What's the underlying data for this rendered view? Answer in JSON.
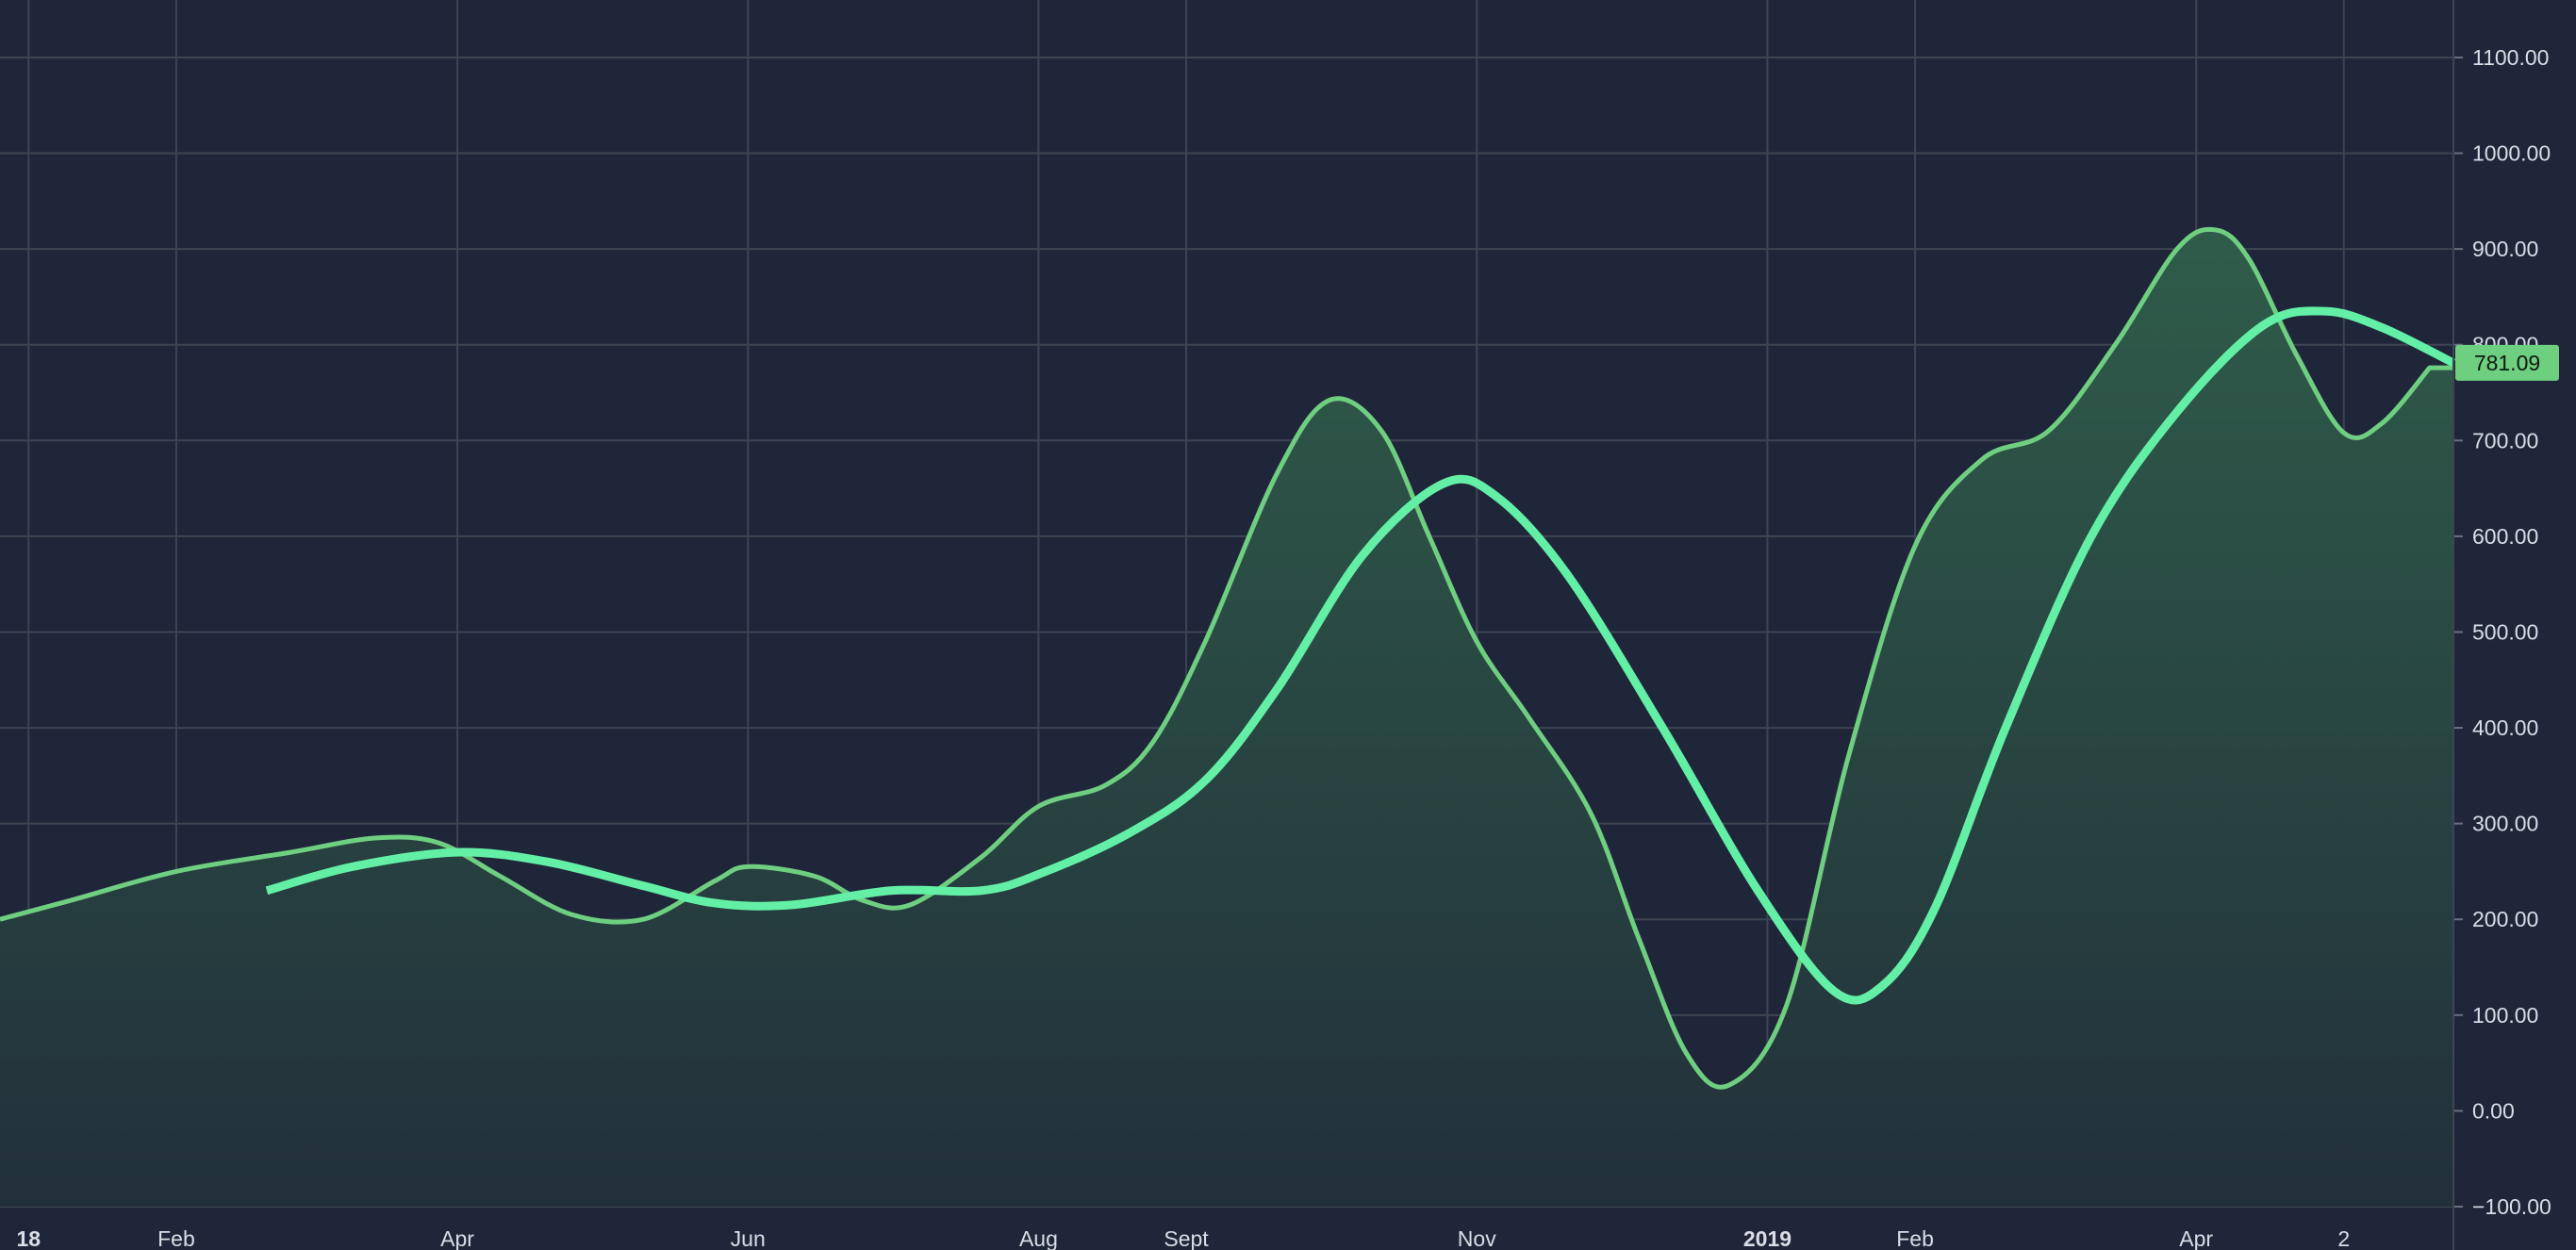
{
  "chart_data": {
    "type": "area",
    "ylim": [
      -100,
      1160
    ],
    "grid": true,
    "y_ticks": [
      "1100.00",
      "1000.00",
      "900.00",
      "800.00",
      "700.00",
      "600.00",
      "500.00",
      "400.00",
      "300.00",
      "200.00",
      "100.00",
      "0.00",
      "−100.00"
    ],
    "y_tick_values": [
      1100,
      1000,
      900,
      800,
      700,
      600,
      500,
      400,
      300,
      200,
      100,
      0,
      -100
    ],
    "x_range": [
      "2017-12-26",
      "2019-05-25"
    ],
    "x_ticks": [
      {
        "label": "18",
        "date": "2018-01-01",
        "bold": true
      },
      {
        "label": "Feb",
        "date": "2018-02-01",
        "bold": false
      },
      {
        "label": "Apr",
        "date": "2018-04-01",
        "bold": false
      },
      {
        "label": "Jun",
        "date": "2018-06-01",
        "bold": false
      },
      {
        "label": "Aug",
        "date": "2018-08-01",
        "bold": false
      },
      {
        "label": "Sept",
        "date": "2018-09-01",
        "bold": false
      },
      {
        "label": "Nov",
        "date": "2018-11-01",
        "bold": false
      },
      {
        "label": "2019",
        "date": "2019-01-01",
        "bold": true
      },
      {
        "label": "Feb",
        "date": "2019-02-01",
        "bold": false
      },
      {
        "label": "Apr",
        "date": "2019-04-01",
        "bold": false
      },
      {
        "label": "2",
        "date": "2019-05-02",
        "bold": false
      }
    ],
    "series": [
      {
        "style": "area",
        "color": "#6fcf80",
        "fill_top": "#2f5c4a",
        "fill_bottom": "#22303a",
        "points": [
          [
            "2017-12-26",
            200
          ],
          [
            "2018-01-10",
            220
          ],
          [
            "2018-02-01",
            250
          ],
          [
            "2018-02-25",
            270
          ],
          [
            "2018-03-15",
            285
          ],
          [
            "2018-03-28",
            280
          ],
          [
            "2018-04-10",
            245
          ],
          [
            "2018-04-25",
            205
          ],
          [
            "2018-05-10",
            200
          ],
          [
            "2018-05-25",
            240
          ],
          [
            "2018-06-01",
            255
          ],
          [
            "2018-06-15",
            245
          ],
          [
            "2018-06-25",
            220
          ],
          [
            "2018-07-05",
            215
          ],
          [
            "2018-07-20",
            265
          ],
          [
            "2018-08-01",
            318
          ],
          [
            "2018-08-15",
            340
          ],
          [
            "2018-08-25",
            385
          ],
          [
            "2018-09-05",
            490
          ],
          [
            "2018-09-20",
            665
          ],
          [
            "2018-10-01",
            742
          ],
          [
            "2018-10-12",
            710
          ],
          [
            "2018-10-22",
            600
          ],
          [
            "2018-11-01",
            490
          ],
          [
            "2018-11-12",
            410
          ],
          [
            "2018-11-25",
            310
          ],
          [
            "2018-12-05",
            180
          ],
          [
            "2018-12-15",
            60
          ],
          [
            "2018-12-24",
            27
          ],
          [
            "2019-01-05",
            110
          ],
          [
            "2019-01-18",
            370
          ],
          [
            "2019-02-01",
            590
          ],
          [
            "2019-02-15",
            680
          ],
          [
            "2019-03-01",
            710
          ],
          [
            "2019-03-15",
            800
          ],
          [
            "2019-03-28",
            900
          ],
          [
            "2019-04-05",
            920
          ],
          [
            "2019-04-12",
            890
          ],
          [
            "2019-04-22",
            790
          ],
          [
            "2019-05-02",
            708
          ],
          [
            "2019-05-10",
            718
          ],
          [
            "2019-05-20",
            776
          ]
        ]
      },
      {
        "style": "line",
        "color": "#63f0a6",
        "points": [
          [
            "2018-02-20",
            230
          ],
          [
            "2018-03-10",
            255
          ],
          [
            "2018-04-01",
            270
          ],
          [
            "2018-04-20",
            260
          ],
          [
            "2018-05-10",
            235
          ],
          [
            "2018-05-25",
            217
          ],
          [
            "2018-06-10",
            215
          ],
          [
            "2018-07-01",
            230
          ],
          [
            "2018-07-20",
            230
          ],
          [
            "2018-08-01",
            247
          ],
          [
            "2018-08-20",
            290
          ],
          [
            "2018-09-05",
            345
          ],
          [
            "2018-09-20",
            440
          ],
          [
            "2018-10-08",
            580
          ],
          [
            "2018-10-25",
            655
          ],
          [
            "2018-11-05",
            642
          ],
          [
            "2018-11-20",
            560
          ],
          [
            "2018-12-10",
            400
          ],
          [
            "2018-12-30",
            230
          ],
          [
            "2019-01-15",
            125
          ],
          [
            "2019-01-25",
            130
          ],
          [
            "2019-02-05",
            210
          ],
          [
            "2019-02-20",
            400
          ],
          [
            "2019-03-10",
            600
          ],
          [
            "2019-03-28",
            730
          ],
          [
            "2019-04-15",
            820
          ],
          [
            "2019-04-28",
            835
          ],
          [
            "2019-05-10",
            818
          ],
          [
            "2019-05-25",
            781
          ]
        ]
      }
    ],
    "last_value_label": "781.09",
    "last_value": 781.09,
    "last_value_label_color": "#6fcf80"
  }
}
